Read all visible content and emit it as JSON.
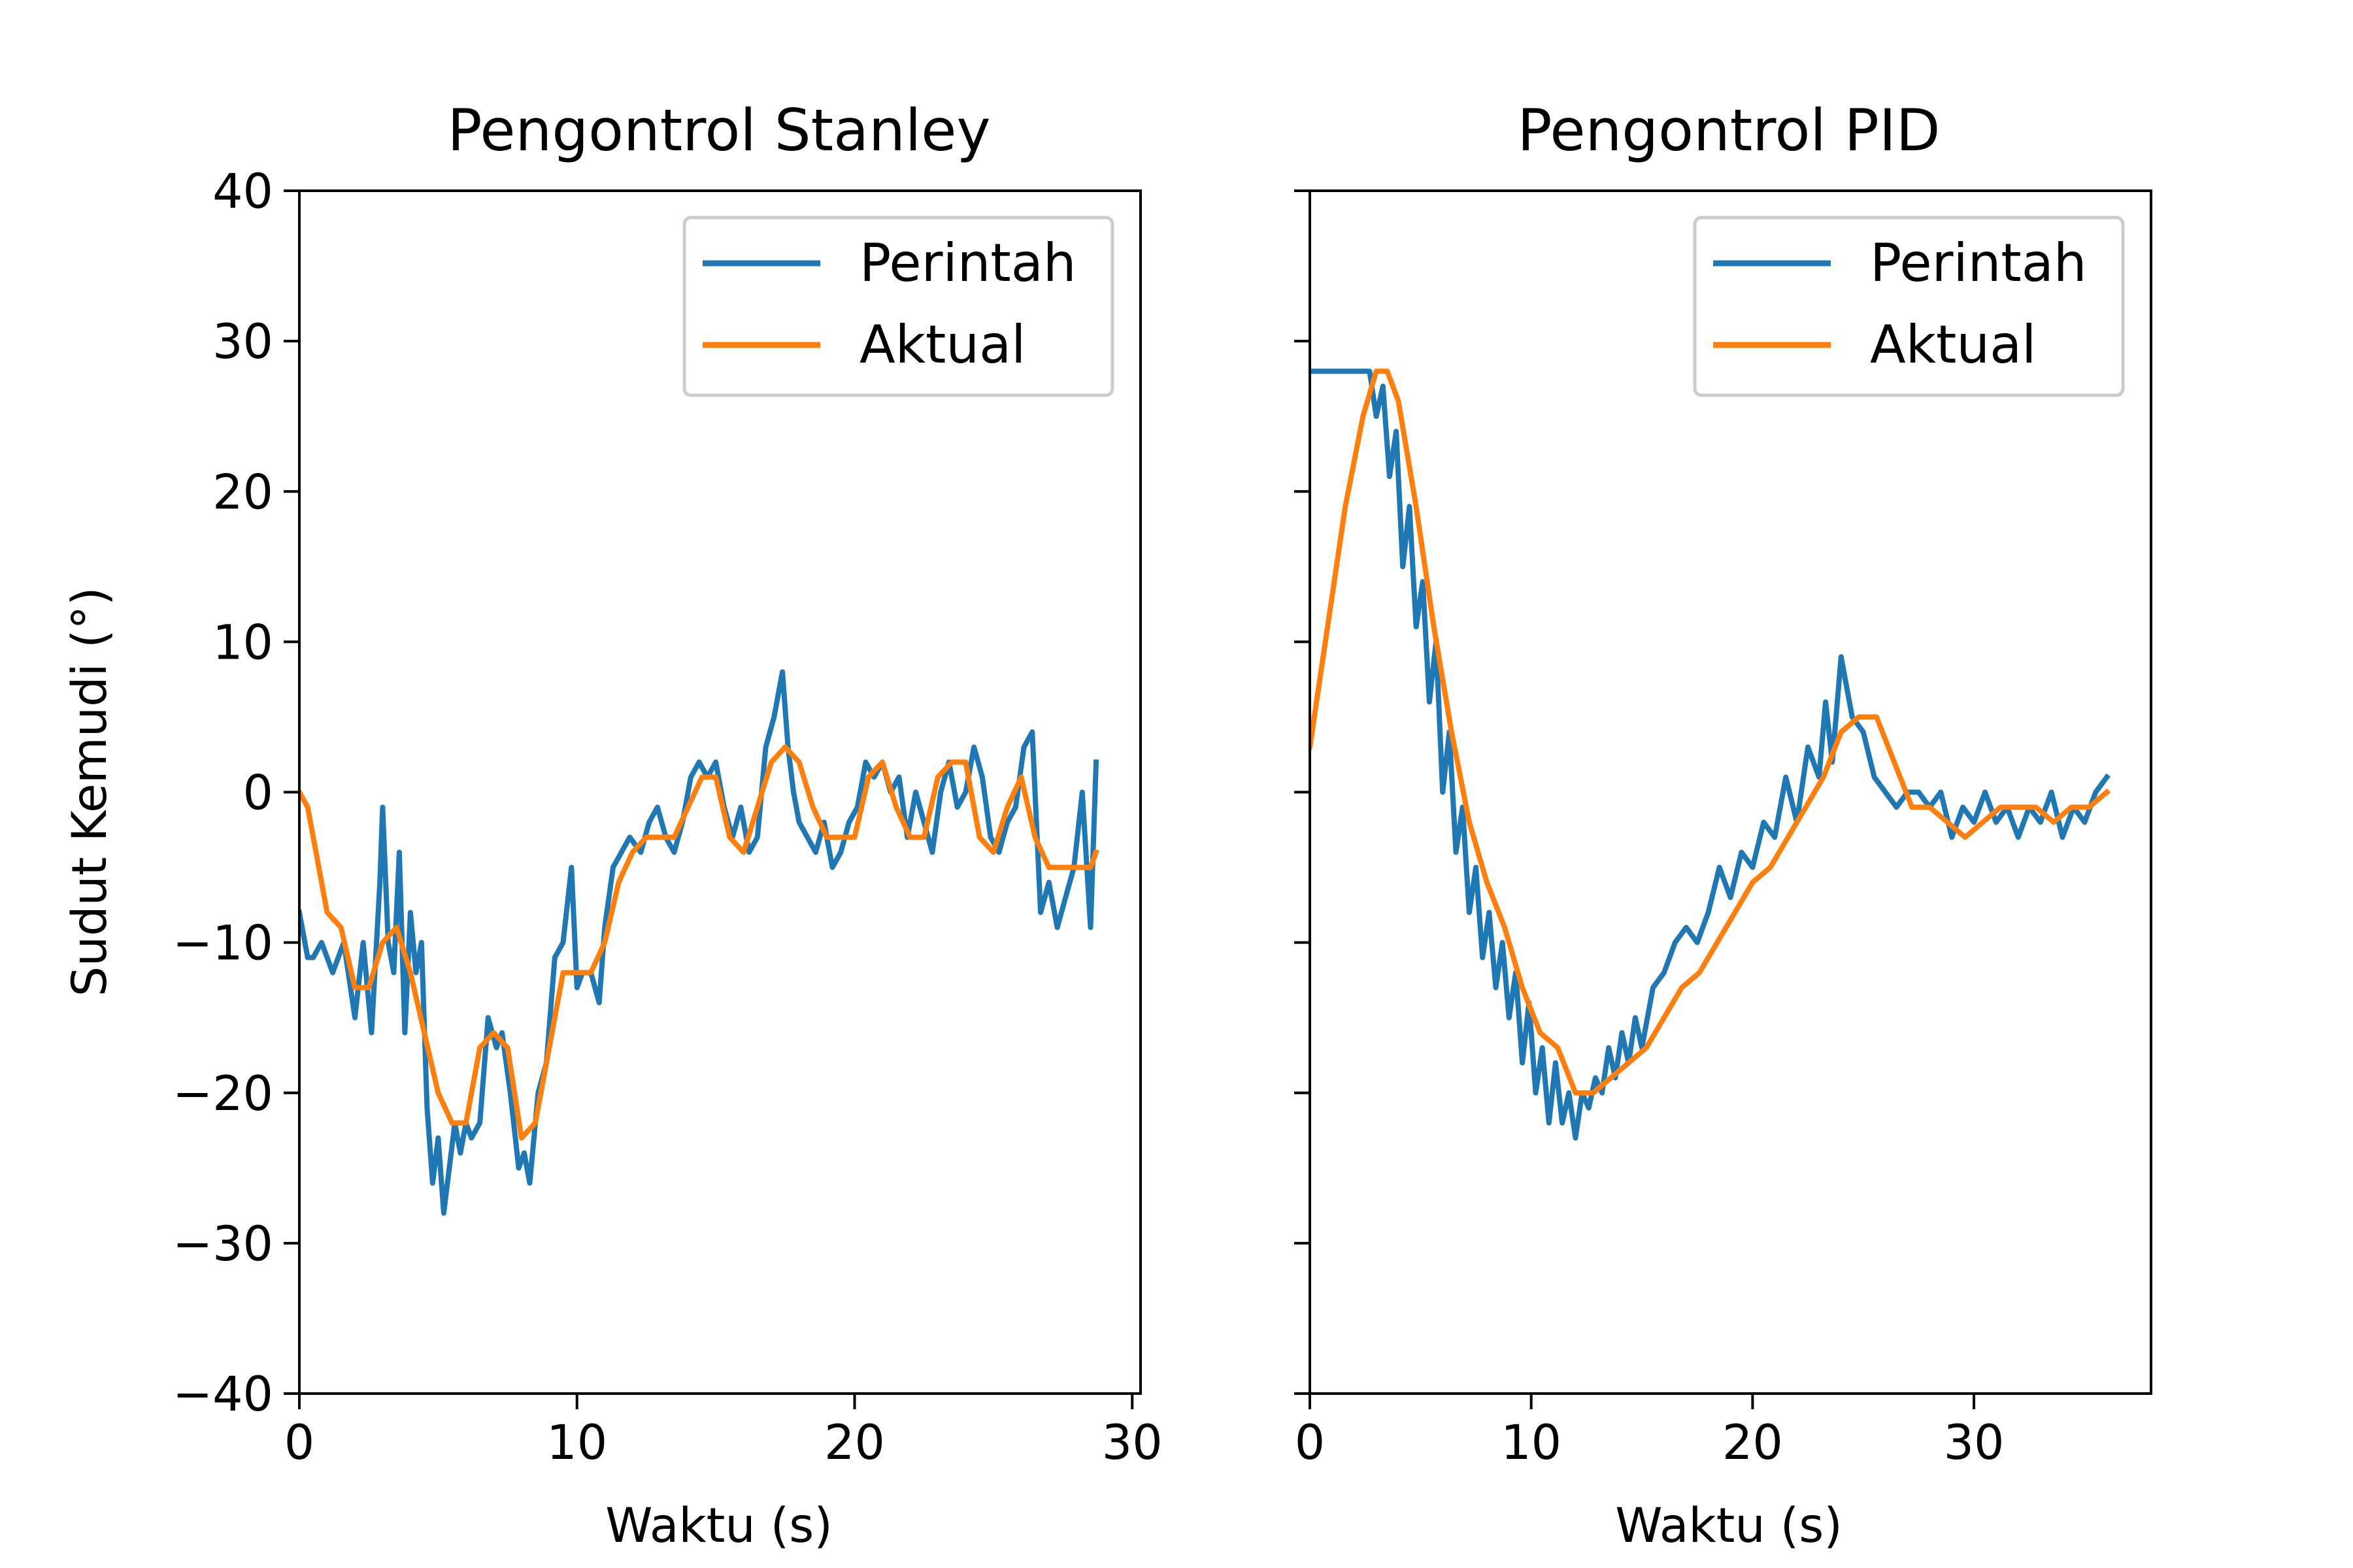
{
  "colors": {
    "command": "#1f77b4",
    "actual": "#ff7f0e",
    "axes": "#000000",
    "legend_border": "#cccccc"
  },
  "chart_data": [
    {
      "type": "line",
      "title": "Pengontrol Stanley",
      "xlabel": "Waktu (s)",
      "ylabel": "Sudut Kemudi (°)",
      "xlim": [
        0,
        30.3
      ],
      "ylim": [
        -40,
        40
      ],
      "xticks": [
        0,
        10,
        20,
        30
      ],
      "yticks": [
        -40,
        -30,
        -20,
        -10,
        0,
        10,
        20,
        30,
        40
      ],
      "xtick_labels": [
        "0",
        "10",
        "20",
        "30"
      ],
      "ytick_labels": [
        "−40",
        "−30",
        "−20",
        "−10",
        "0",
        "10",
        "20",
        "30",
        "40"
      ],
      "grid": false,
      "legend": {
        "position": "top-right",
        "entries": [
          "Perintah",
          "Aktual"
        ]
      },
      "series": [
        {
          "name": "Perintah",
          "x": [
            0,
            0.3,
            0.5,
            0.8,
            1.2,
            1.6,
            2,
            2.3,
            2.6,
            2.9,
            3,
            3.2,
            3.4,
            3.6,
            3.8,
            4,
            4.2,
            4.4,
            4.6,
            4.8,
            5,
            5.2,
            5.4,
            5.6,
            5.8,
            6,
            6.2,
            6.5,
            6.8,
            7.1,
            7.3,
            7.6,
            7.9,
            8.1,
            8.3,
            8.6,
            8.9,
            9.2,
            9.5,
            9.8,
            10,
            10.2,
            10.5,
            10.8,
            11,
            11.3,
            11.6,
            11.9,
            12.3,
            12.6,
            12.9,
            13.2,
            13.5,
            13.8,
            14.1,
            14.4,
            14.7,
            15,
            15.3,
            15.6,
            15.9,
            16.2,
            16.5,
            16.8,
            17.1,
            17.4,
            17.6,
            17.8,
            18,
            18.3,
            18.6,
            18.9,
            19.2,
            19.5,
            19.8,
            20.1,
            20.4,
            20.7,
            21,
            21.3,
            21.6,
            21.9,
            22.2,
            22.5,
            22.8,
            23.1,
            23.4,
            23.7,
            24,
            24.3,
            24.6,
            24.9,
            25.2,
            25.5,
            25.8,
            26.1,
            26.4,
            26.7,
            27,
            27.3,
            27.6,
            27.9,
            28.2,
            28.5,
            28.7
          ],
          "values": [
            -8,
            -11,
            -11,
            -10,
            -12,
            -10,
            -15,
            -10,
            -16,
            -6,
            -1,
            -10,
            -12,
            -4,
            -16,
            -8,
            -12,
            -10,
            -21,
            -26,
            -23,
            -28,
            -25,
            -22,
            -24,
            -22,
            -23,
            -22,
            -15,
            -17,
            -16,
            -20,
            -25,
            -24,
            -26,
            -20,
            -18,
            -11,
            -10,
            -5,
            -13,
            -12,
            -12,
            -14,
            -9,
            -5,
            -4,
            -3,
            -4,
            -2,
            -1,
            -3,
            -4,
            -2,
            1,
            2,
            1,
            2,
            -1,
            -3,
            -1,
            -4,
            -3,
            3,
            5,
            8,
            3,
            0,
            -2,
            -3,
            -4,
            -2,
            -5,
            -4,
            -2,
            -1,
            2,
            1,
            2,
            0,
            1,
            -3,
            0,
            -2,
            -4,
            0,
            2,
            -1,
            0,
            3,
            1,
            -3,
            -4,
            -2,
            -1,
            3,
            4,
            -8,
            -6,
            -9,
            -7,
            -5,
            0,
            -9,
            2
          ],
          "color": "#1f77b4"
        },
        {
          "name": "Aktual",
          "x": [
            0,
            0.3,
            0.6,
            1,
            1.5,
            2,
            2.5,
            3,
            3.5,
            4,
            4.5,
            5,
            5.5,
            6,
            6.5,
            7,
            7.5,
            8,
            8.5,
            9,
            9.5,
            10,
            10.5,
            11,
            11.5,
            12,
            12.5,
            13,
            13.5,
            14,
            14.5,
            15,
            15.5,
            16,
            16.5,
            17,
            17.5,
            18,
            18.5,
            19,
            19.5,
            20,
            20.5,
            21,
            21.5,
            22,
            22.5,
            23,
            23.5,
            24,
            24.5,
            25,
            25.5,
            26,
            26.5,
            27,
            27.5,
            28,
            28.5,
            28.7
          ],
          "values": [
            0,
            -1,
            -4,
            -8,
            -9,
            -13,
            -13,
            -10,
            -9,
            -12,
            -16,
            -20,
            -22,
            -22,
            -17,
            -16,
            -17,
            -23,
            -22,
            -17,
            -12,
            -12,
            -12,
            -10,
            -6,
            -4,
            -3,
            -3,
            -3,
            -1,
            1,
            1,
            -3,
            -4,
            -1,
            2,
            3,
            2,
            -1,
            -3,
            -3,
            -3,
            1,
            2,
            -1,
            -3,
            -3,
            1,
            2,
            2,
            -3,
            -4,
            -1,
            1,
            -3,
            -5,
            -5,
            -5,
            -5,
            -4
          ],
          "color": "#ff7f0e"
        }
      ]
    },
    {
      "type": "line",
      "title": "Pengontrol PID",
      "xlabel": "Waktu (s)",
      "ylabel": "",
      "xlim": [
        0,
        38
      ],
      "ylim": [
        -40,
        40
      ],
      "xticks": [
        0,
        10,
        20,
        30
      ],
      "yticks": [
        -40,
        -30,
        -20,
        -10,
        0,
        10,
        20,
        30,
        40
      ],
      "xtick_labels": [
        "0",
        "10",
        "20",
        "30"
      ],
      "ytick_labels": [],
      "grid": false,
      "legend": {
        "position": "top-right",
        "entries": [
          "Perintah",
          "Aktual"
        ]
      },
      "series": [
        {
          "name": "Perintah",
          "x": [
            0,
            1,
            2,
            2.7,
            3,
            3.3,
            3.6,
            3.9,
            4.2,
            4.5,
            4.8,
            5.1,
            5.4,
            5.7,
            6,
            6.3,
            6.6,
            6.9,
            7.2,
            7.5,
            7.8,
            8.1,
            8.4,
            8.7,
            9,
            9.3,
            9.6,
            9.9,
            10.2,
            10.5,
            10.8,
            11.1,
            11.4,
            11.7,
            12,
            12.3,
            12.6,
            12.9,
            13.2,
            13.5,
            13.8,
            14.1,
            14.4,
            14.7,
            15,
            15.5,
            16,
            16.5,
            17,
            17.5,
            18,
            18.5,
            19,
            19.5,
            20,
            20.5,
            21,
            21.5,
            22,
            22.5,
            23,
            23.3,
            23.6,
            24,
            24.5,
            25,
            25.5,
            26,
            26.5,
            27,
            27.5,
            28,
            28.5,
            29,
            29.5,
            30,
            30.5,
            31,
            31.5,
            32,
            32.5,
            33,
            33.5,
            34,
            34.5,
            35,
            35.5,
            36
          ],
          "values": [
            28,
            28,
            28,
            28,
            25,
            27,
            21,
            24,
            15,
            19,
            11,
            14,
            6,
            10,
            0,
            4,
            -4,
            -1,
            -8,
            -5,
            -11,
            -8,
            -13,
            -10,
            -15,
            -12,
            -18,
            -14,
            -20,
            -17,
            -22,
            -18,
            -22,
            -20,
            -23,
            -20,
            -21,
            -19,
            -20,
            -17,
            -19,
            -16,
            -18,
            -15,
            -17,
            -13,
            -12,
            -10,
            -9,
            -10,
            -8,
            -5,
            -7,
            -4,
            -5,
            -2,
            -3,
            1,
            -2,
            3,
            1,
            6,
            2,
            9,
            5,
            4,
            1,
            0,
            -1,
            0,
            0,
            -1,
            0,
            -3,
            -1,
            -2,
            0,
            -2,
            -1,
            -3,
            -1,
            -2,
            0,
            -3,
            -1,
            -2,
            0,
            1
          ],
          "color": "#1f77b4"
        },
        {
          "name": "Aktual",
          "x": [
            0,
            0.8,
            1.6,
            2.4,
            3,
            3.5,
            4,
            4.8,
            5.6,
            6.4,
            7.2,
            8,
            8.8,
            9.6,
            10.4,
            11.2,
            12,
            12.8,
            13.6,
            14.4,
            15.2,
            16,
            16.8,
            17.6,
            18.4,
            19.2,
            20,
            20.8,
            21.6,
            22.4,
            23.2,
            24,
            24.8,
            25.6,
            26.4,
            27.2,
            28,
            28.8,
            29.6,
            30.4,
            31.2,
            32,
            32.8,
            33.6,
            34.4,
            35.2,
            36
          ],
          "values": [
            3,
            11,
            19,
            25,
            28,
            28,
            26,
            19,
            11,
            4,
            -2,
            -6,
            -9,
            -13,
            -16,
            -17,
            -20,
            -20,
            -19,
            -18,
            -17,
            -15,
            -13,
            -12,
            -10,
            -8,
            -6,
            -5,
            -3,
            -1,
            1,
            4,
            5,
            5,
            2,
            -1,
            -1,
            -2,
            -3,
            -2,
            -1,
            -1,
            -1,
            -2,
            -1,
            -1,
            0
          ],
          "color": "#ff7f0e"
        }
      ]
    }
  ]
}
